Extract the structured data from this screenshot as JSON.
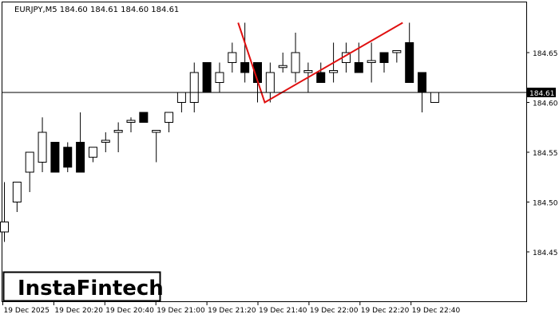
{
  "header": {
    "symbol_info": "EURJPY,M5  184.60 184.61 184.60 184.61"
  },
  "logo": {
    "text": "InstaFintech"
  },
  "chart_data": {
    "type": "candlestick",
    "symbol": "EURJPY",
    "timeframe": "M5",
    "ylim": [
      184.4,
      184.7
    ],
    "y_ticks": [
      "184.65",
      "184.60",
      "184.55",
      "184.50",
      "184.45"
    ],
    "x_ticks": [
      "19 Dec 2025",
      "19 Dec 20:20",
      "19 Dec 20:40",
      "19 Dec 21:00",
      "19 Dec 21:20",
      "19 Dec 21:40",
      "19 Dec 22:00",
      "19 Dec 22:20",
      "19 Dec 22:40"
    ],
    "current_price": 184.61,
    "current_price_label": "184.61",
    "colors": {
      "bull_fill": "#ffffff",
      "bear_fill": "#000000",
      "outline": "#000000",
      "pattern": "#e01010",
      "price_line": "#000000"
    },
    "candles": [
      {
        "o": 184.47,
        "h": 184.52,
        "l": 184.46,
        "c": 184.48
      },
      {
        "o": 184.5,
        "h": 184.52,
        "l": 184.49,
        "c": 184.52
      },
      {
        "o": 184.53,
        "h": 184.55,
        "l": 184.51,
        "c": 184.55
      },
      {
        "o": 184.54,
        "h": 184.585,
        "l": 184.53,
        "c": 184.57
      },
      {
        "o": 184.56,
        "h": 184.56,
        "l": 184.53,
        "c": 184.53
      },
      {
        "o": 184.555,
        "h": 184.56,
        "l": 184.53,
        "c": 184.535
      },
      {
        "o": 184.56,
        "h": 184.59,
        "l": 184.53,
        "c": 184.53
      },
      {
        "o": 184.545,
        "h": 184.555,
        "l": 184.54,
        "c": 184.555
      },
      {
        "o": 184.56,
        "h": 184.57,
        "l": 184.55,
        "c": 184.562
      },
      {
        "o": 184.57,
        "h": 184.58,
        "l": 184.55,
        "c": 184.572
      },
      {
        "o": 184.58,
        "h": 184.585,
        "l": 184.57,
        "c": 184.582
      },
      {
        "o": 184.59,
        "h": 184.59,
        "l": 184.58,
        "c": 184.58
      },
      {
        "o": 184.57,
        "h": 184.57,
        "l": 184.54,
        "c": 184.572
      },
      {
        "o": 184.58,
        "h": 184.59,
        "l": 184.57,
        "c": 184.59
      },
      {
        "o": 184.6,
        "h": 184.61,
        "l": 184.59,
        "c": 184.61
      },
      {
        "o": 184.6,
        "h": 184.64,
        "l": 184.59,
        "c": 184.63
      },
      {
        "o": 184.64,
        "h": 184.64,
        "l": 184.61,
        "c": 184.61
      },
      {
        "o": 184.62,
        "h": 184.64,
        "l": 184.61,
        "c": 184.63
      },
      {
        "o": 184.64,
        "h": 184.66,
        "l": 184.63,
        "c": 184.65
      },
      {
        "o": 184.64,
        "h": 184.68,
        "l": 184.62,
        "c": 184.63
      },
      {
        "o": 184.64,
        "h": 184.64,
        "l": 184.6,
        "c": 184.62
      },
      {
        "o": 184.61,
        "h": 184.64,
        "l": 184.6,
        "c": 184.63
      },
      {
        "o": 184.635,
        "h": 184.65,
        "l": 184.63,
        "c": 184.637
      },
      {
        "o": 184.63,
        "h": 184.67,
        "l": 184.62,
        "c": 184.65
      },
      {
        "o": 184.63,
        "h": 184.64,
        "l": 184.61,
        "c": 184.632
      },
      {
        "o": 184.63,
        "h": 184.64,
        "l": 184.62,
        "c": 184.62
      },
      {
        "o": 184.63,
        "h": 184.66,
        "l": 184.62,
        "c": 184.632
      },
      {
        "o": 184.64,
        "h": 184.66,
        "l": 184.63,
        "c": 184.65
      },
      {
        "o": 184.64,
        "h": 184.66,
        "l": 184.63,
        "c": 184.63
      },
      {
        "o": 184.64,
        "h": 184.66,
        "l": 184.62,
        "c": 184.642
      },
      {
        "o": 184.65,
        "h": 184.65,
        "l": 184.63,
        "c": 184.64
      },
      {
        "o": 184.65,
        "h": 184.65,
        "l": 184.64,
        "c": 184.652
      },
      {
        "o": 184.66,
        "h": 184.68,
        "l": 184.62,
        "c": 184.62
      },
      {
        "o": 184.63,
        "h": 184.63,
        "l": 184.59,
        "c": 184.61
      },
      {
        "o": 184.6,
        "h": 184.61,
        "l": 184.6,
        "c": 184.61
      }
    ],
    "pattern_points": [
      {
        "candle": 18.5,
        "price": 184.68
      },
      {
        "candle": 20.6,
        "price": 184.6
      },
      {
        "candle": 31.5,
        "price": 184.68
      }
    ]
  }
}
